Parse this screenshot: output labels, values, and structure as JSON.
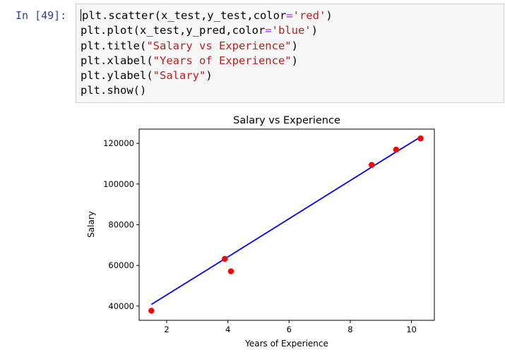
{
  "cell": {
    "prompt": "In [49]:",
    "lines": [
      [
        {
          "t": "plt.scatter(x_test,y_test,color"
        },
        {
          "t": "=",
          "c": "op"
        },
        {
          "t": "'red'",
          "c": "str"
        },
        {
          "t": ")"
        }
      ],
      [
        {
          "t": "plt.plot(x_test,y_pred,color"
        },
        {
          "t": "=",
          "c": "op"
        },
        {
          "t": "'blue'",
          "c": "str"
        },
        {
          "t": ")"
        }
      ],
      [
        {
          "t": "plt.title("
        },
        {
          "t": "\"Salary vs Experience\"",
          "c": "str"
        },
        {
          "t": ")"
        }
      ],
      [
        {
          "t": "plt.xlabel("
        },
        {
          "t": "\"Years of Experience\"",
          "c": "str"
        },
        {
          "t": ")"
        }
      ],
      [
        {
          "t": "plt.ylabel("
        },
        {
          "t": "\"Salary\"",
          "c": "str"
        },
        {
          "t": ")"
        }
      ],
      [
        {
          "t": "plt.show()"
        }
      ]
    ]
  },
  "chart_data": {
    "type": "scatter",
    "title": "Salary vs Experience",
    "xlabel": "Years of Experience",
    "ylabel": "Salary",
    "xlim": [
      1.1,
      10.75
    ],
    "ylim": [
      33000,
      127000
    ],
    "xticks": [
      2,
      4,
      6,
      8,
      10
    ],
    "yticks": [
      40000,
      60000,
      80000,
      100000,
      120000
    ],
    "scatter": {
      "color": "#ff0000",
      "x": [
        1.5,
        3.9,
        4.1,
        8.7,
        9.5,
        10.3
      ],
      "y": [
        37700,
        63200,
        57100,
        109400,
        116900,
        122400
      ]
    },
    "line": {
      "color": "#0000ff",
      "x": [
        1.5,
        3.9,
        4.1,
        8.7,
        9.5,
        10.3
      ],
      "y": [
        40800,
        63200,
        65100,
        108300,
        115800,
        123200
      ]
    },
    "grid": false
  }
}
